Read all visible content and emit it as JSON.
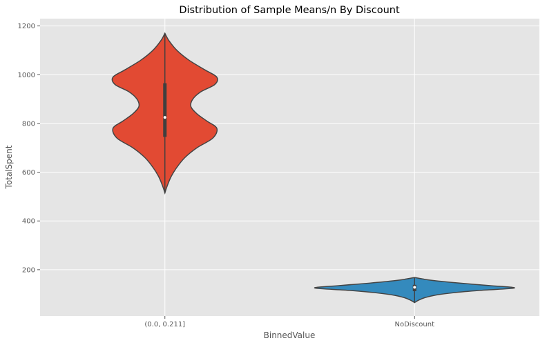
{
  "chart_data": {
    "type": "violin",
    "title": "Distribution of Sample Means/n By Discount",
    "xlabel": "BinnedValue",
    "ylabel": "TotalSpent",
    "categories": [
      "(0.0, 0.211]",
      "NoDiscount"
    ],
    "ylim": [
      10,
      1230
    ],
    "yticks": [
      200,
      400,
      600,
      800,
      1000,
      1200
    ],
    "ytick_labels": [
      "200",
      "400",
      "600",
      "800",
      "1000",
      "1200"
    ],
    "grid": true,
    "legend": "none",
    "colors": {
      "background": "#E5E5E5",
      "grid": "#FFFFFF",
      "series": [
        "#E24A33",
        "#348ABD"
      ],
      "outline": "#444444",
      "box": "#3F3F3F",
      "median": "#FFFFFF"
    },
    "violins": [
      {
        "category": "(0.0, 0.211]",
        "color": "#E24A33",
        "min": 515,
        "q1": 745,
        "median": 825,
        "q3": 965,
        "max": 1170,
        "density": [
          [
            515,
            0.0
          ],
          [
            540,
            0.02
          ],
          [
            580,
            0.06
          ],
          [
            620,
            0.12
          ],
          [
            660,
            0.2
          ],
          [
            700,
            0.32
          ],
          [
            740,
            0.48
          ],
          [
            780,
            0.52
          ],
          [
            810,
            0.42
          ],
          [
            840,
            0.32
          ],
          [
            870,
            0.26
          ],
          [
            900,
            0.28
          ],
          [
            930,
            0.36
          ],
          [
            960,
            0.5
          ],
          [
            990,
            0.52
          ],
          [
            1020,
            0.4
          ],
          [
            1060,
            0.24
          ],
          [
            1100,
            0.12
          ],
          [
            1140,
            0.04
          ],
          [
            1170,
            0.0
          ]
        ]
      },
      {
        "category": "NoDiscount",
        "color": "#348ABD",
        "min": 65,
        "q1": 112,
        "median": 128,
        "q3": 138,
        "max": 168,
        "density": [
          [
            65,
            0.0
          ],
          [
            75,
            0.04
          ],
          [
            85,
            0.1
          ],
          [
            95,
            0.2
          ],
          [
            105,
            0.38
          ],
          [
            115,
            0.65
          ],
          [
            125,
            1.0
          ],
          [
            135,
            0.75
          ],
          [
            145,
            0.45
          ],
          [
            155,
            0.2
          ],
          [
            162,
            0.08
          ],
          [
            168,
            0.0
          ]
        ]
      }
    ]
  }
}
